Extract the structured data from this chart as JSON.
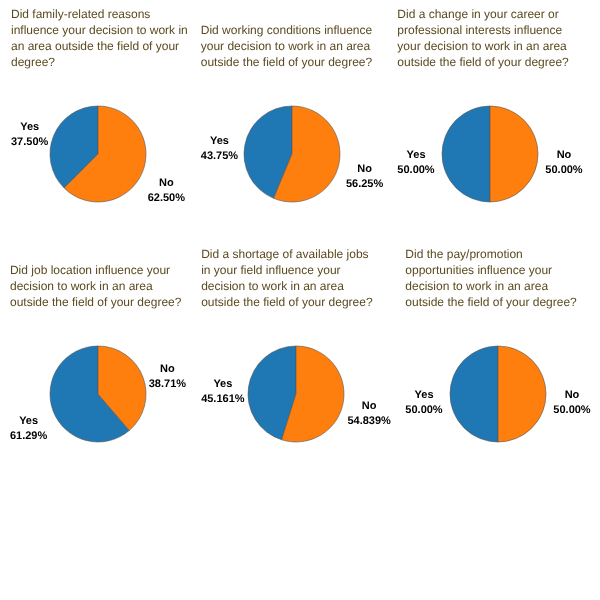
{
  "chart_data": [
    {
      "type": "pie",
      "title": "Did family-related reasons influence your decision to work in an area outside the field of your degree?",
      "categories": [
        "Yes",
        "No"
      ],
      "values": [
        37.5,
        62.5
      ],
      "colors": [
        "#1f77b4",
        "#ff7f0e"
      ],
      "value_labels": [
        "37.50%",
        "62.50%"
      ]
    },
    {
      "type": "pie",
      "title": "Did working conditions influence your decision to work in an area outside the field of your degree?",
      "categories": [
        "Yes",
        "No"
      ],
      "values": [
        43.75,
        56.25
      ],
      "colors": [
        "#1f77b4",
        "#ff7f0e"
      ],
      "value_labels": [
        "43.75%",
        "56.25%"
      ]
    },
    {
      "type": "pie",
      "title": "Did a change in your career or professional interests influence your decision to work in an area outside the field of your degree?",
      "categories": [
        "Yes",
        "No"
      ],
      "values": [
        50.0,
        50.0
      ],
      "colors": [
        "#1f77b4",
        "#ff7f0e"
      ],
      "value_labels": [
        "50.00%",
        "50.00%"
      ]
    },
    {
      "type": "pie",
      "title": "Did job location influence your decision to work in an area outside the field of your degree?",
      "categories": [
        "Yes",
        "No"
      ],
      "values": [
        61.29,
        38.71
      ],
      "colors": [
        "#1f77b4",
        "#ff7f0e"
      ],
      "value_labels": [
        "61.29%",
        "38.71%"
      ]
    },
    {
      "type": "pie",
      "title": "Did a shortage of available jobs in your field influence your decision to work in an area outside the field of your degree?",
      "categories": [
        "Yes",
        "No"
      ],
      "values": [
        45.161,
        54.839
      ],
      "colors": [
        "#1f77b4",
        "#ff7f0e"
      ],
      "value_labels": [
        "45.161%",
        "54.839%"
      ]
    },
    {
      "type": "pie",
      "title": "Did the pay/promotion opportunities influence your decision to work in an area outside the field of your degree?",
      "categories": [
        "Yes",
        "No"
      ],
      "values": [
        50.0,
        50.0
      ],
      "colors": [
        "#1f77b4",
        "#ff7f0e"
      ],
      "value_labels": [
        "50.00%",
        "50.00%"
      ]
    }
  ]
}
